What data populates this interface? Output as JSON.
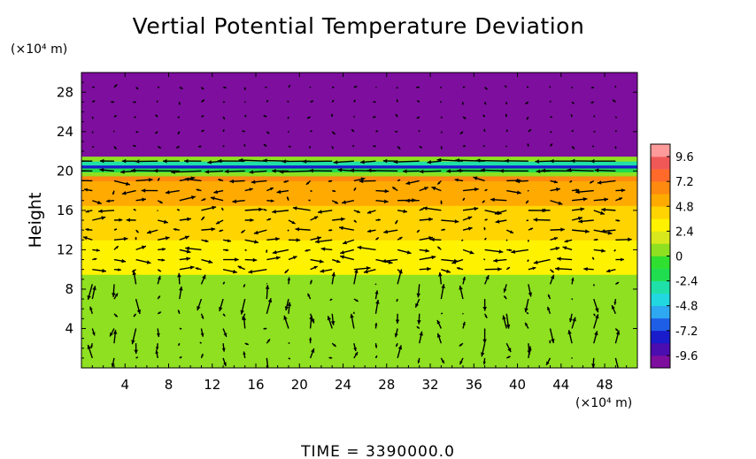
{
  "chart_data": {
    "type": "heatmap",
    "title": "Vertial Potential Temperature Deviation",
    "ylabel": "Height",
    "x_unit_label": "(×10⁴ m)",
    "y_unit_label": "(×10⁴ m)",
    "xlim": [
      0,
      51
    ],
    "ylim": [
      0,
      30
    ],
    "x_ticks": [
      "4",
      "8",
      "12",
      "16",
      "20",
      "24",
      "28",
      "32",
      "36",
      "40",
      "44",
      "48"
    ],
    "y_ticks": [
      "4",
      "8",
      "12",
      "16",
      "20",
      "24",
      "28"
    ],
    "x_tick_values": [
      4,
      8,
      12,
      16,
      20,
      24,
      28,
      32,
      36,
      40,
      44,
      48
    ],
    "y_tick_values": [
      4,
      8,
      12,
      16,
      20,
      24,
      28
    ],
    "colorbar": {
      "labels": [
        "9.6",
        "7.2",
        "4.8",
        "2.4",
        "0",
        "-2.4",
        "-4.8",
        "-7.2",
        "-9.6"
      ],
      "values": [
        9.6,
        7.2,
        4.8,
        2.4,
        0,
        -2.4,
        -4.8,
        -7.2,
        -9.6
      ],
      "range": [
        -10.8,
        10.8
      ],
      "colors_low_to_high": [
        "#7e0e9e",
        "#4b0cb0",
        "#1a1ccc",
        "#1e5ee6",
        "#2ea8f0",
        "#22d8e0",
        "#1fe0a8",
        "#20dd50",
        "#2fe030",
        "#8ee020",
        "#d8e81c",
        "#fff200",
        "#ffd400",
        "#ffaa00",
        "#ff8a10",
        "#ff6a2a",
        "#f05858",
        "#ff9a9a"
      ]
    },
    "field_bands": [
      {
        "y0": 0,
        "y1": 9.5,
        "value": 0.3
      },
      {
        "y0": 9.5,
        "y1": 10.5,
        "value": 2.4
      },
      {
        "y0": 10.5,
        "y1": 13.0,
        "value": 3.4
      },
      {
        "y0": 13.0,
        "y1": 16.5,
        "value": 4.0
      },
      {
        "y0": 16.5,
        "y1": 17.8,
        "value": 4.8
      },
      {
        "y0": 17.8,
        "y1": 19.0,
        "value": 5.8
      },
      {
        "y0": 19.0,
        "y1": 19.5,
        "value": 6.8
      },
      {
        "y0": 19.5,
        "y1": 19.9,
        "value": 0.5
      },
      {
        "y0": 19.9,
        "y1": 20.3,
        "value": -2.0
      },
      {
        "y0": 20.3,
        "y1": 20.6,
        "value": -7.6
      },
      {
        "y0": 20.6,
        "y1": 21.0,
        "value": -3.5
      },
      {
        "y0": 21.0,
        "y1": 21.5,
        "value": 1.0
      },
      {
        "y0": 21.5,
        "y1": 30,
        "value": -10.0
      }
    ],
    "vector_field": {
      "description_of_quantity": "wind vectors",
      "rows_y": [
        1,
        2.5,
        4,
        5.5,
        7,
        8.5,
        10,
        11,
        12,
        13,
        14,
        15,
        16,
        17,
        18,
        19,
        20,
        21,
        22.5,
        24,
        25.5,
        27,
        28.5
      ],
      "cols_x": [
        1,
        3,
        5,
        7,
        9,
        11,
        13,
        15,
        17,
        19,
        21,
        23,
        25,
        27,
        29,
        31,
        33,
        35,
        37,
        39,
        41,
        43,
        45,
        47,
        49
      ]
    }
  },
  "time_label": "TIME  =  3390000.0"
}
